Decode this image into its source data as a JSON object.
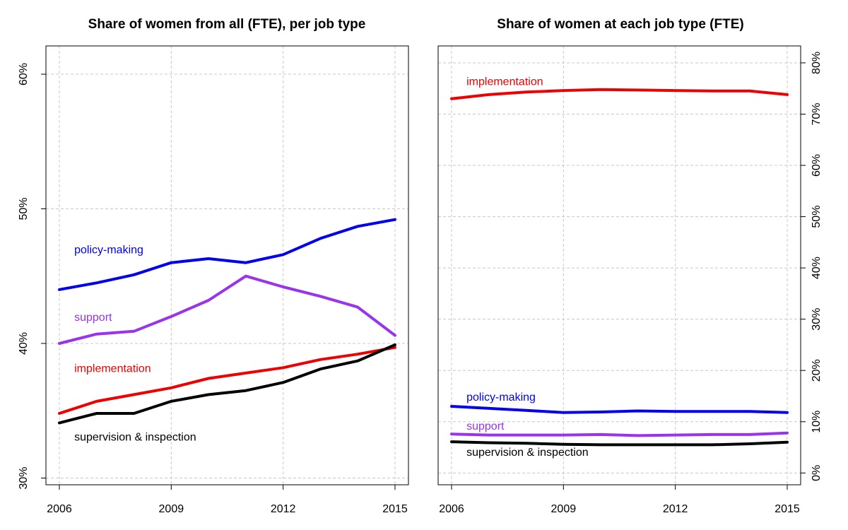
{
  "chart_data": [
    {
      "type": "line",
      "title": "Share of women from all (FTE), per job type",
      "xlabel": "",
      "ylabel": "",
      "x": [
        2006,
        2007,
        2008,
        2009,
        2010,
        2011,
        2012,
        2013,
        2014,
        2015
      ],
      "xticks": [
        2006,
        2009,
        2012,
        2015
      ],
      "xtick_labels": [
        "2006",
        "2009",
        "2012",
        "2015"
      ],
      "ylim": [
        29.5,
        62.1
      ],
      "yticks": [
        30,
        40,
        50,
        60
      ],
      "ytick_labels": [
        "30%",
        "40%",
        "50%",
        "60%"
      ],
      "y_axis_side": "left",
      "grid": true,
      "series": [
        {
          "name": "policy-making",
          "color": "#0000ee",
          "values": [
            44.0,
            44.5,
            45.1,
            46.0,
            46.3,
            46.0,
            46.6,
            47.8,
            48.7,
            49.2
          ],
          "label_at": [
            2006.4,
            47.0
          ]
        },
        {
          "name": "support",
          "color": "#9933ee",
          "values": [
            40.0,
            40.7,
            40.9,
            42.0,
            43.2,
            45.0,
            44.2,
            43.5,
            42.7,
            40.6
          ],
          "label_at": [
            2006.4,
            42.0
          ]
        },
        {
          "name": "implementation",
          "color": "#ee0000",
          "values": [
            34.8,
            35.7,
            36.2,
            36.7,
            37.4,
            37.8,
            38.2,
            38.8,
            39.2,
            39.7
          ],
          "label_at": [
            2006.4,
            38.2
          ]
        },
        {
          "name": "supervision & inspection",
          "color": "#000000",
          "values": [
            34.1,
            34.8,
            34.8,
            35.7,
            36.2,
            36.5,
            37.1,
            38.1,
            38.7,
            39.9
          ],
          "label_at": [
            2006.4,
            33.1
          ]
        }
      ]
    },
    {
      "type": "line",
      "title": "Share of women at each job type (FTE)",
      "xlabel": "",
      "ylabel": "",
      "x": [
        2006,
        2007,
        2008,
        2009,
        2010,
        2011,
        2012,
        2013,
        2014,
        2015
      ],
      "xticks": [
        2006,
        2009,
        2012,
        2015
      ],
      "xtick_labels": [
        "2006",
        "2009",
        "2012",
        "2015"
      ],
      "ylim": [
        -2.3,
        83.3
      ],
      "yticks": [
        0,
        10,
        20,
        30,
        40,
        50,
        60,
        70,
        80
      ],
      "ytick_labels": [
        "0%",
        "10%",
        "20%",
        "30%",
        "40%",
        "50%",
        "60%",
        "70%",
        "80%"
      ],
      "y_axis_side": "right",
      "grid": true,
      "series": [
        {
          "name": "implementation",
          "color": "#ee0000",
          "values": [
            73.0,
            73.8,
            74.3,
            74.6,
            74.8,
            74.7,
            74.6,
            74.5,
            74.5,
            73.8
          ],
          "label_at": [
            2006.4,
            76.5
          ]
        },
        {
          "name": "policy-making",
          "color": "#0000ee",
          "values": [
            13.0,
            12.6,
            12.2,
            11.8,
            11.9,
            12.1,
            12.0,
            12.0,
            12.0,
            11.8
          ],
          "label_at": [
            2006.4,
            14.9
          ]
        },
        {
          "name": "support",
          "color": "#9933ee",
          "values": [
            7.6,
            7.4,
            7.4,
            7.4,
            7.5,
            7.3,
            7.4,
            7.5,
            7.5,
            7.8
          ],
          "label_at": [
            2006.4,
            9.3
          ]
        },
        {
          "name": "supervision & inspection",
          "color": "#000000",
          "values": [
            6.1,
            5.9,
            5.8,
            5.6,
            5.5,
            5.5,
            5.5,
            5.5,
            5.7,
            6.0
          ],
          "label_at": [
            2006.4,
            4.2
          ]
        }
      ]
    }
  ]
}
